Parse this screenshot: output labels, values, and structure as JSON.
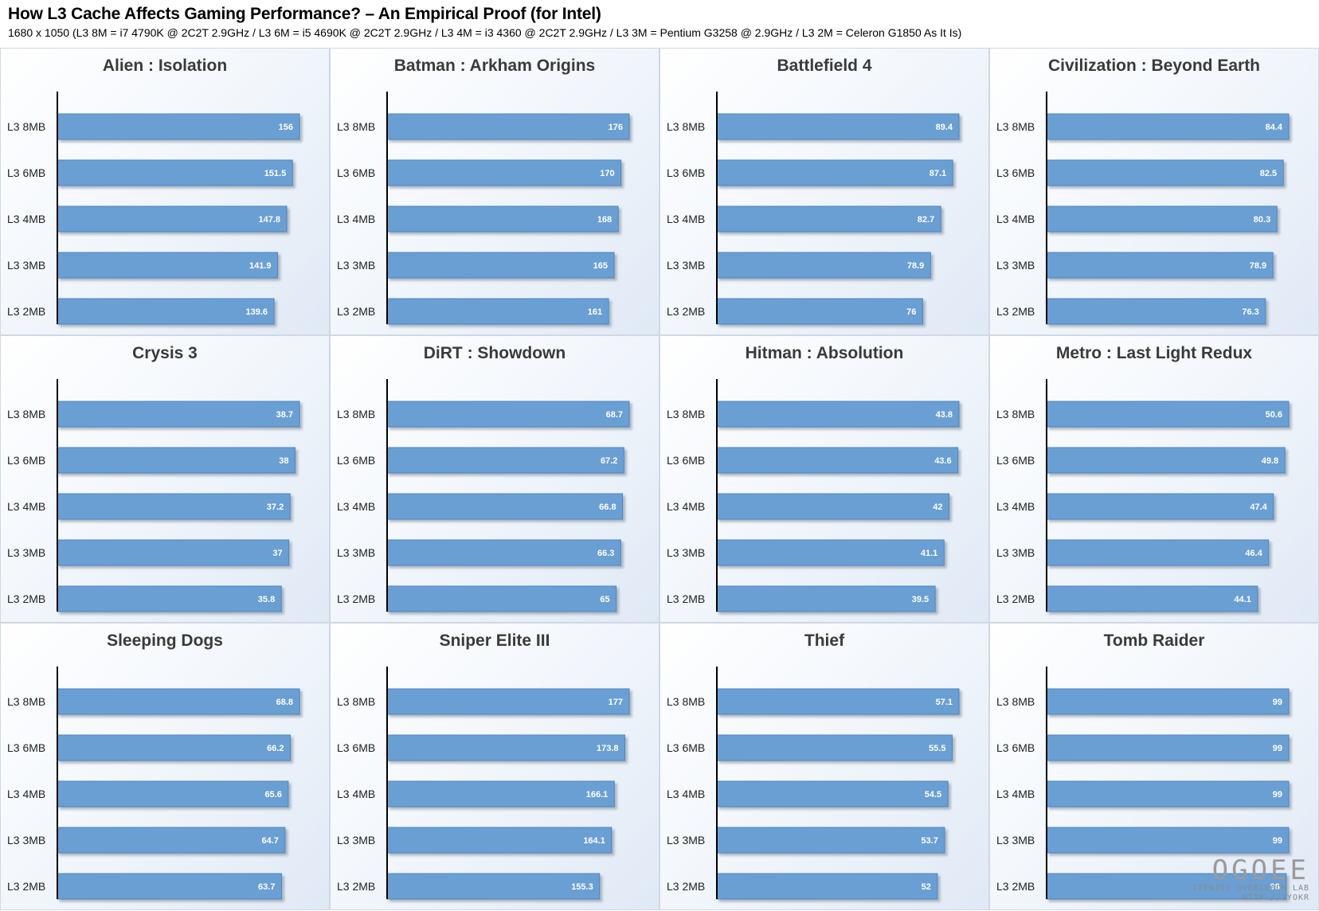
{
  "title": "How L3 Cache Affects Gaming Performance? – An Empirical Proof (for Intel)",
  "subtitle": "1680 x 1050 (L3 8M = i7 4790K @ 2C2T 2.9GHz / L3 6M = i5 4690K @ 2C2T 2.9GHz / L3 4M = i3 4360 @ 2C2T 2.9GHz / L3 3M = Pentium G3258 @ 2.9GHz / L3 2M = Celeron G1850 As It Is)",
  "colors": {
    "bar": "#6a9fd4",
    "bar_border": "#4f86c0",
    "bar_shadow": "#9aa5b2",
    "axis": "#000000"
  },
  "watermark": {
    "logo": "OGOEE",
    "line1": "ITENJOY OVERCLOCK LAB",
    "line2": "HTTP://IYOKR"
  },
  "chart_data": [
    {
      "type": "bar",
      "orientation": "horizontal",
      "title": "Alien : Isolation",
      "categories": [
        "L3 8MB",
        "L3 6MB",
        "L3 4MB",
        "L3 3MB",
        "L3 2MB"
      ],
      "values": [
        156,
        151.5,
        147.8,
        141.9,
        139.6
      ]
    },
    {
      "type": "bar",
      "orientation": "horizontal",
      "title": "Batman : Arkham Origins",
      "categories": [
        "L3 8MB",
        "L3 6MB",
        "L3 4MB",
        "L3 3MB",
        "L3 2MB"
      ],
      "values": [
        176,
        170,
        168,
        165,
        161
      ]
    },
    {
      "type": "bar",
      "orientation": "horizontal",
      "title": "Battlefield 4",
      "categories": [
        "L3 8MB",
        "L3 6MB",
        "L3 4MB",
        "L3 3MB",
        "L3 2MB"
      ],
      "values": [
        89.4,
        87.1,
        82.7,
        78.9,
        76
      ]
    },
    {
      "type": "bar",
      "orientation": "horizontal",
      "title": "Civilization : Beyond Earth",
      "categories": [
        "L3 8MB",
        "L3 6MB",
        "L3 4MB",
        "L3 3MB",
        "L3 2MB"
      ],
      "values": [
        84.4,
        82.5,
        80.3,
        78.9,
        76.3
      ]
    },
    {
      "type": "bar",
      "orientation": "horizontal",
      "title": "Crysis 3",
      "categories": [
        "L3 8MB",
        "L3 6MB",
        "L3 4MB",
        "L3 3MB",
        "L3 2MB"
      ],
      "values": [
        38.7,
        38,
        37.2,
        37,
        35.8
      ]
    },
    {
      "type": "bar",
      "orientation": "horizontal",
      "title": "DiRT : Showdown",
      "categories": [
        "L3 8MB",
        "L3 6MB",
        "L3 4MB",
        "L3 3MB",
        "L3 2MB"
      ],
      "values": [
        68.7,
        67.2,
        66.8,
        66.3,
        65
      ]
    },
    {
      "type": "bar",
      "orientation": "horizontal",
      "title": "Hitman : Absolution",
      "categories": [
        "L3 8MB",
        "L3 6MB",
        "L3 4MB",
        "L3 3MB",
        "L3 2MB"
      ],
      "values": [
        43.8,
        43.6,
        42,
        41.1,
        39.5
      ]
    },
    {
      "type": "bar",
      "orientation": "horizontal",
      "title": "Metro : Last Light Redux",
      "categories": [
        "L3 8MB",
        "L3 6MB",
        "L3 4MB",
        "L3 3MB",
        "L3 2MB"
      ],
      "values": [
        50.6,
        49.8,
        47.4,
        46.4,
        44.1
      ]
    },
    {
      "type": "bar",
      "orientation": "horizontal",
      "title": "Sleeping Dogs",
      "categories": [
        "L3 8MB",
        "L3 6MB",
        "L3 4MB",
        "L3 3MB",
        "L3 2MB"
      ],
      "values": [
        68.8,
        66.2,
        65.6,
        64.7,
        63.7
      ]
    },
    {
      "type": "bar",
      "orientation": "horizontal",
      "title": "Sniper Elite III",
      "categories": [
        "L3 8MB",
        "L3 6MB",
        "L3 4MB",
        "L3 3MB",
        "L3 2MB"
      ],
      "values": [
        177,
        173.8,
        166.1,
        164.1,
        155.3
      ]
    },
    {
      "type": "bar",
      "orientation": "horizontal",
      "title": "Thief",
      "categories": [
        "L3 8MB",
        "L3 6MB",
        "L3 4MB",
        "L3 3MB",
        "L3 2MB"
      ],
      "values": [
        57.1,
        55.5,
        54.5,
        53.7,
        52
      ]
    },
    {
      "type": "bar",
      "orientation": "horizontal",
      "title": "Tomb Raider",
      "categories": [
        "L3 8MB",
        "L3 6MB",
        "L3 4MB",
        "L3 3MB",
        "L3 2MB"
      ],
      "values": [
        99,
        99,
        99,
        99,
        98
      ]
    }
  ]
}
